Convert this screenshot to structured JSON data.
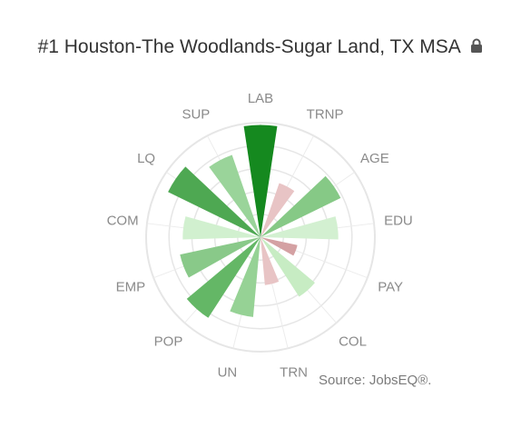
{
  "header": {
    "title": "#1 Houston-The Woodlands-Sugar Land, TX MSA",
    "lock_icon": "lock-icon"
  },
  "source": "Source: JobsEQ®.",
  "chart_data": {
    "type": "polar-bar",
    "categories": [
      "LAB",
      "TRNP",
      "AGE",
      "EDU",
      "PAY",
      "COL",
      "TRN",
      "UN",
      "POP",
      "EMP",
      "COM",
      "LQ",
      "SUP"
    ],
    "values": [
      0.98,
      0.5,
      0.78,
      0.68,
      0.33,
      0.62,
      0.42,
      0.7,
      0.84,
      0.72,
      0.68,
      0.9,
      0.76
    ],
    "bar_colors": [
      "#15891f",
      "#e8c4c5",
      "#86c986",
      "#d3f0d1",
      "#d4a1a3",
      "#c7ecc3",
      "#e8c4c5",
      "#96d295",
      "#64b766",
      "#89c989",
      "#d1f0cf",
      "#4ea852",
      "#9ad49a"
    ],
    "grid": true,
    "rings": 5
  }
}
